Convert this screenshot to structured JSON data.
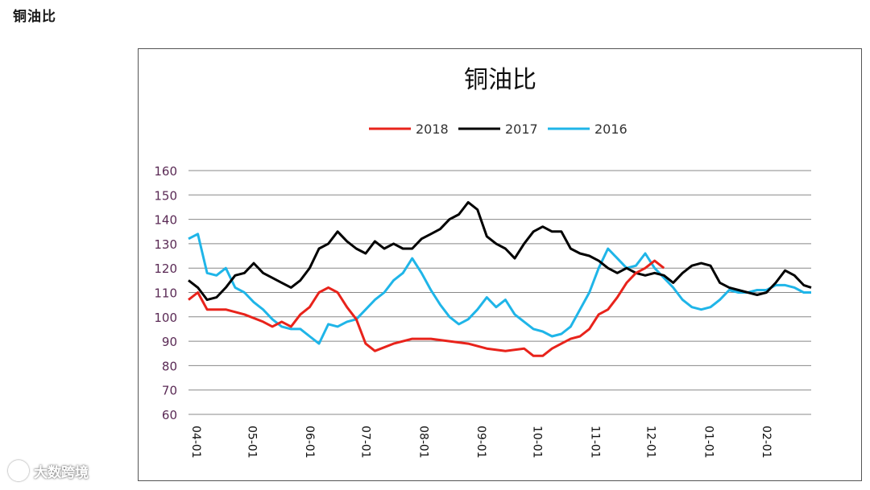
{
  "page": {
    "heading": "铜油比"
  },
  "watermark": {
    "text": "大数跨境"
  },
  "chart_data": {
    "type": "line",
    "title": "铜油比",
    "xlabel": "",
    "ylabel": "",
    "ylim": [
      60,
      160
    ],
    "y_ticks": [
      60,
      70,
      80,
      90,
      100,
      110,
      120,
      130,
      140,
      150,
      160
    ],
    "x_range": [
      0,
      334
    ],
    "x_ticks": [
      {
        "label": "04-01",
        "x": 0
      },
      {
        "label": "05-01",
        "x": 30
      },
      {
        "label": "06-01",
        "x": 61
      },
      {
        "label": "07-01",
        "x": 91
      },
      {
        "label": "08-01",
        "x": 122
      },
      {
        "label": "09-01",
        "x": 153
      },
      {
        "label": "10-01",
        "x": 183
      },
      {
        "label": "11-01",
        "x": 214
      },
      {
        "label": "12-01",
        "x": 244
      },
      {
        "label": "01-01",
        "x": 275
      },
      {
        "label": "02-01",
        "x": 306
      }
    ],
    "grid": true,
    "legend_position": "top-center",
    "series": [
      {
        "name": "2018",
        "color": "#e8231b",
        "points": [
          [
            0,
            107
          ],
          [
            5,
            110
          ],
          [
            10,
            103
          ],
          [
            20,
            103
          ],
          [
            30,
            101
          ],
          [
            40,
            98
          ],
          [
            45,
            96
          ],
          [
            50,
            98
          ],
          [
            55,
            96
          ],
          [
            60,
            101
          ],
          [
            65,
            104
          ],
          [
            70,
            110
          ],
          [
            75,
            112
          ],
          [
            80,
            110
          ],
          [
            85,
            104
          ],
          [
            90,
            99
          ],
          [
            95,
            89
          ],
          [
            100,
            86
          ],
          [
            110,
            89
          ],
          [
            120,
            91
          ],
          [
            130,
            91
          ],
          [
            140,
            90
          ],
          [
            150,
            89
          ],
          [
            160,
            87
          ],
          [
            170,
            86
          ],
          [
            180,
            87
          ],
          [
            185,
            84
          ],
          [
            190,
            84
          ],
          [
            195,
            87
          ],
          [
            200,
            89
          ],
          [
            205,
            91
          ],
          [
            210,
            92
          ],
          [
            215,
            95
          ],
          [
            220,
            101
          ],
          [
            225,
            103
          ],
          [
            230,
            108
          ],
          [
            235,
            114
          ],
          [
            240,
            118
          ],
          [
            245,
            120
          ],
          [
            250,
            123
          ],
          [
            255,
            120
          ]
        ]
      },
      {
        "name": "2017",
        "color": "#000000",
        "points": [
          [
            0,
            115
          ],
          [
            5,
            112
          ],
          [
            10,
            107
          ],
          [
            15,
            108
          ],
          [
            20,
            112
          ],
          [
            25,
            117
          ],
          [
            30,
            118
          ],
          [
            35,
            122
          ],
          [
            40,
            118
          ],
          [
            45,
            116
          ],
          [
            50,
            114
          ],
          [
            55,
            112
          ],
          [
            60,
            115
          ],
          [
            65,
            120
          ],
          [
            70,
            128
          ],
          [
            75,
            130
          ],
          [
            80,
            135
          ],
          [
            85,
            131
          ],
          [
            90,
            128
          ],
          [
            95,
            126
          ],
          [
            100,
            131
          ],
          [
            105,
            128
          ],
          [
            110,
            130
          ],
          [
            115,
            128
          ],
          [
            120,
            128
          ],
          [
            125,
            132
          ],
          [
            130,
            134
          ],
          [
            135,
            136
          ],
          [
            140,
            140
          ],
          [
            145,
            142
          ],
          [
            150,
            147
          ],
          [
            155,
            144
          ],
          [
            160,
            133
          ],
          [
            165,
            130
          ],
          [
            170,
            128
          ],
          [
            175,
            124
          ],
          [
            180,
            130
          ],
          [
            185,
            135
          ],
          [
            190,
            137
          ],
          [
            195,
            135
          ],
          [
            200,
            135
          ],
          [
            205,
            128
          ],
          [
            210,
            126
          ],
          [
            215,
            125
          ],
          [
            220,
            123
          ],
          [
            225,
            120
          ],
          [
            230,
            118
          ],
          [
            235,
            120
          ],
          [
            240,
            118
          ],
          [
            245,
            117
          ],
          [
            250,
            118
          ],
          [
            255,
            117
          ],
          [
            260,
            114
          ],
          [
            265,
            118
          ],
          [
            270,
            121
          ],
          [
            275,
            122
          ],
          [
            280,
            121
          ],
          [
            285,
            114
          ],
          [
            290,
            112
          ],
          [
            295,
            111
          ],
          [
            300,
            110
          ],
          [
            305,
            109
          ],
          [
            310,
            110
          ],
          [
            315,
            114
          ],
          [
            320,
            119
          ],
          [
            325,
            117
          ],
          [
            330,
            113
          ],
          [
            334,
            112
          ]
        ]
      },
      {
        "name": "2016",
        "color": "#1fb5e8",
        "points": [
          [
            0,
            132
          ],
          [
            5,
            134
          ],
          [
            10,
            118
          ],
          [
            15,
            117
          ],
          [
            20,
            120
          ],
          [
            25,
            112
          ],
          [
            30,
            110
          ],
          [
            35,
            106
          ],
          [
            40,
            103
          ],
          [
            45,
            99
          ],
          [
            50,
            96
          ],
          [
            55,
            95
          ],
          [
            60,
            95
          ],
          [
            65,
            92
          ],
          [
            70,
            89
          ],
          [
            75,
            97
          ],
          [
            80,
            96
          ],
          [
            85,
            98
          ],
          [
            90,
            99
          ],
          [
            95,
            103
          ],
          [
            100,
            107
          ],
          [
            105,
            110
          ],
          [
            110,
            115
          ],
          [
            115,
            118
          ],
          [
            120,
            124
          ],
          [
            125,
            118
          ],
          [
            130,
            111
          ],
          [
            135,
            105
          ],
          [
            140,
            100
          ],
          [
            145,
            97
          ],
          [
            150,
            99
          ],
          [
            155,
            103
          ],
          [
            160,
            108
          ],
          [
            165,
            104
          ],
          [
            170,
            107
          ],
          [
            175,
            101
          ],
          [
            180,
            98
          ],
          [
            185,
            95
          ],
          [
            190,
            94
          ],
          [
            195,
            92
          ],
          [
            200,
            93
          ],
          [
            205,
            96
          ],
          [
            210,
            103
          ],
          [
            215,
            110
          ],
          [
            220,
            120
          ],
          [
            225,
            128
          ],
          [
            230,
            124
          ],
          [
            235,
            120
          ],
          [
            240,
            121
          ],
          [
            245,
            126
          ],
          [
            250,
            120
          ],
          [
            255,
            116
          ],
          [
            260,
            112
          ],
          [
            265,
            107
          ],
          [
            270,
            104
          ],
          [
            275,
            103
          ],
          [
            280,
            104
          ],
          [
            285,
            107
          ],
          [
            290,
            111
          ],
          [
            295,
            110
          ],
          [
            300,
            110
          ],
          [
            305,
            111
          ],
          [
            310,
            111
          ],
          [
            315,
            113
          ],
          [
            320,
            113
          ],
          [
            325,
            112
          ],
          [
            330,
            110
          ],
          [
            334,
            110
          ]
        ]
      }
    ]
  }
}
